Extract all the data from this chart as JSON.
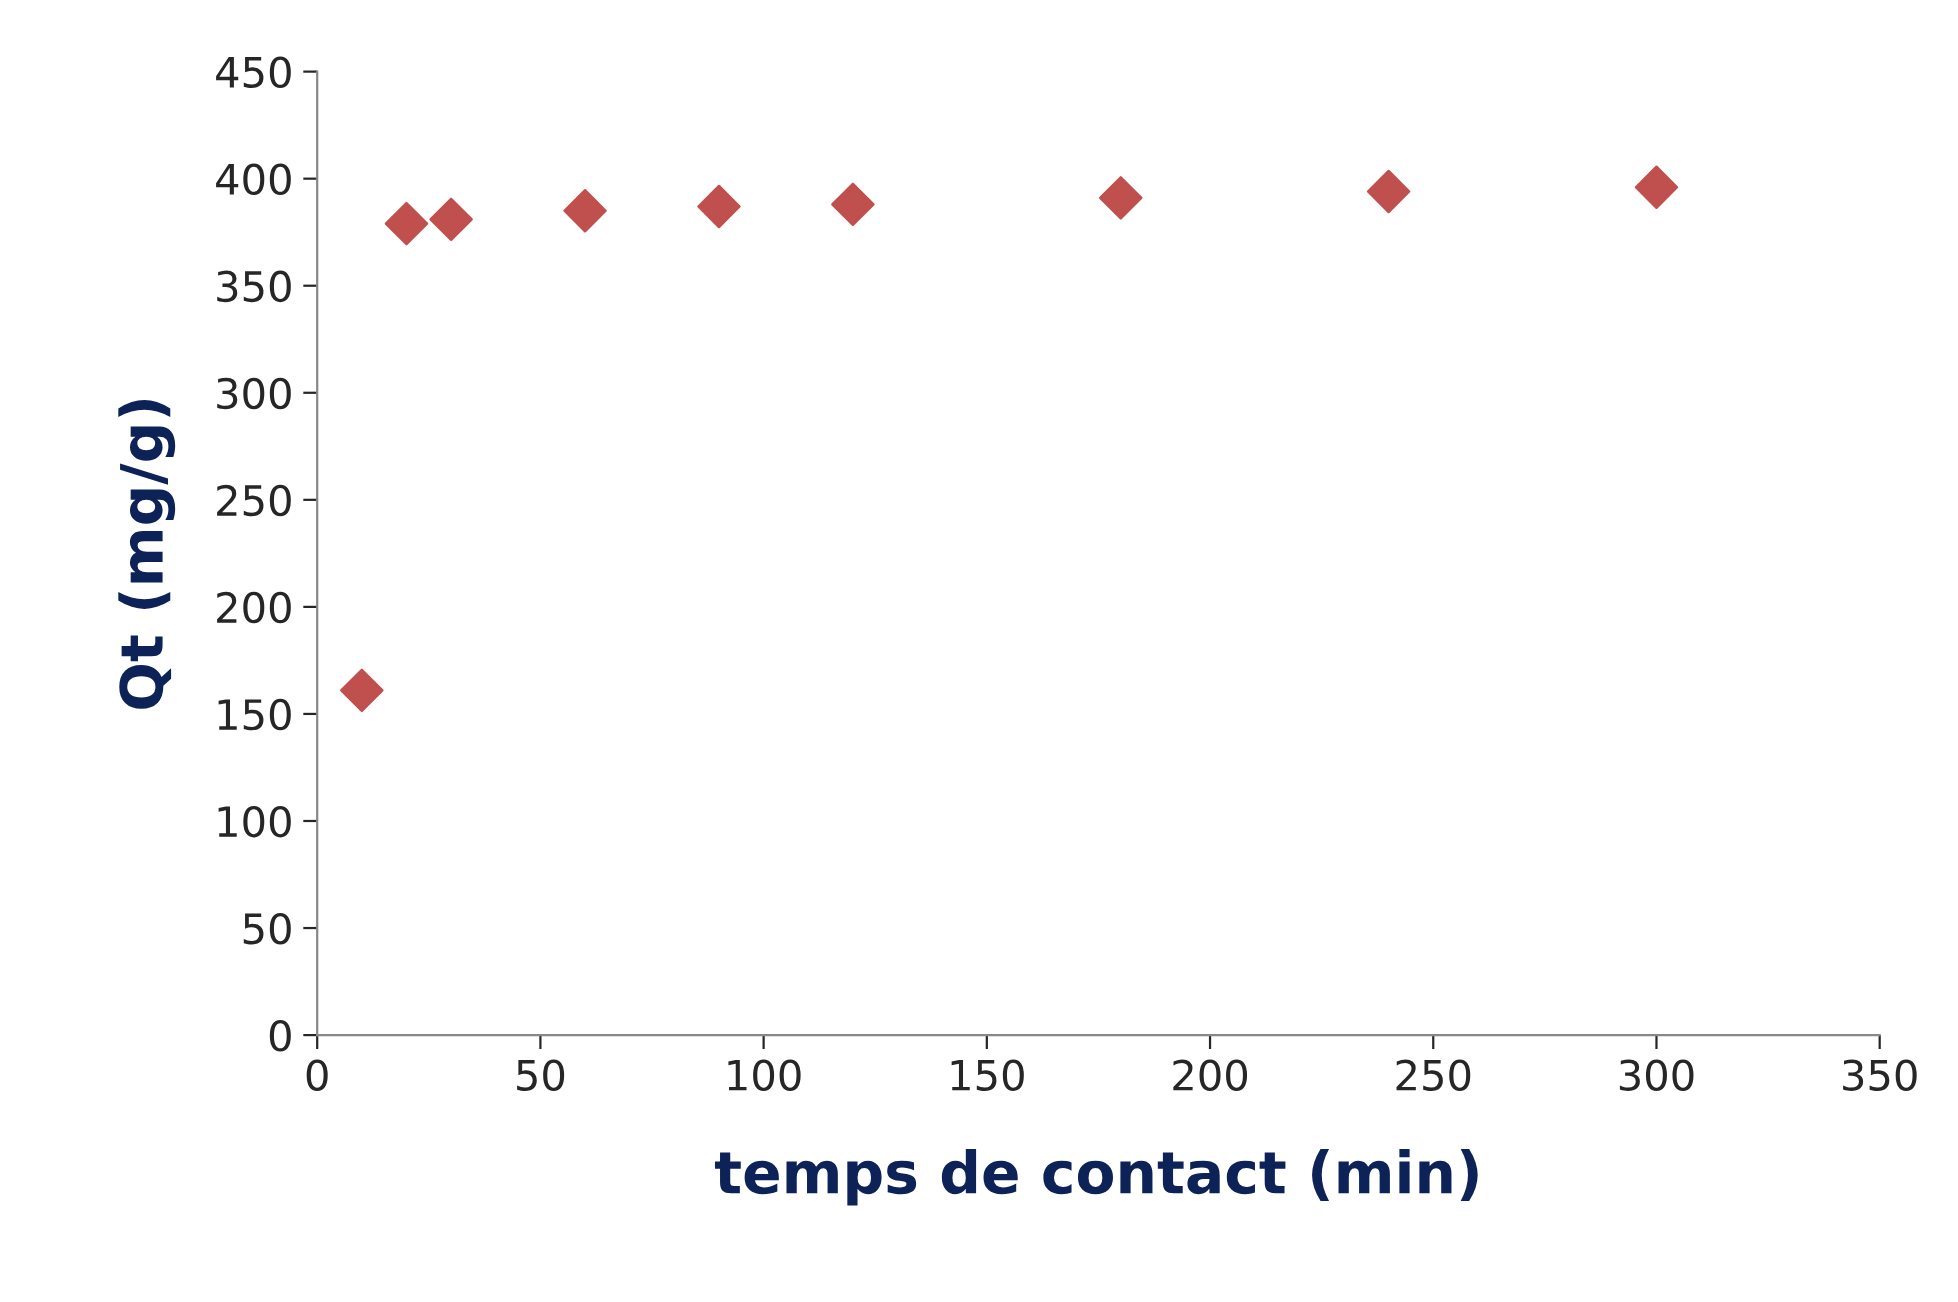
{
  "chart_data": {
    "type": "scatter",
    "xlabel": "temps de contact (min)",
    "ylabel": "Qt (mg/g)",
    "x": [
      10,
      20,
      30,
      60,
      90,
      120,
      180,
      240,
      300
    ],
    "series": [
      {
        "color": "#c0504d",
        "values": [
          161,
          379,
          381,
          385,
          387,
          388,
          391,
          394,
          396
        ]
      }
    ],
    "marker": "diamond",
    "xlim": [
      0,
      350
    ],
    "xticks": [
      0,
      50,
      100,
      150,
      200,
      250,
      300,
      350
    ],
    "ylim": [
      0,
      450
    ],
    "yticks": [
      0,
      50,
      100,
      150,
      200,
      250,
      300,
      350,
      400,
      450
    ],
    "grid": false,
    "legend": false
  }
}
